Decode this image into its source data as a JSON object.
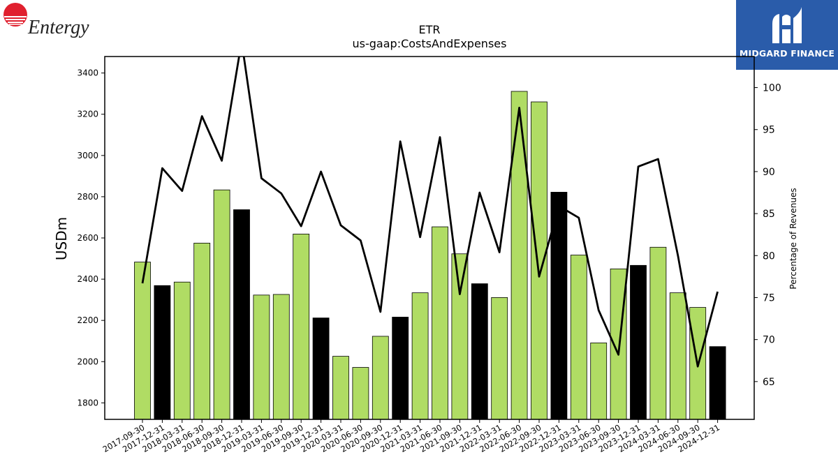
{
  "logos": {
    "left_brand": "Entergy",
    "right_brand": "MIDGARD FINANCE"
  },
  "chart_data": {
    "type": "bar",
    "title": "ETR",
    "subtitle": "us-gaap:CostsAndExpenses",
    "ylabel": "USDm",
    "y2label": "Percentage of Revenues",
    "ylim": [
      1720,
      3480
    ],
    "y2lim": [
      60.5,
      103.7
    ],
    "yticks": [
      1800,
      2000,
      2200,
      2400,
      2600,
      2800,
      3000,
      3200,
      3400
    ],
    "y2ticks": [
      65,
      70,
      75,
      80,
      85,
      90,
      95,
      100
    ],
    "grid": false,
    "categories": [
      "2017-09-30",
      "2017-12-31",
      "2018-03-31",
      "2018-06-30",
      "2018-09-30",
      "2018-12-31",
      "2019-03-31",
      "2019-06-30",
      "2019-09-30",
      "2019-12-31",
      "2020-03-31",
      "2020-06-30",
      "2020-09-30",
      "2020-12-31",
      "2021-03-31",
      "2021-06-30",
      "2021-09-30",
      "2021-12-31",
      "2022-03-31",
      "2022-06-30",
      "2022-09-30",
      "2022-12-31",
      "2023-03-31",
      "2023-06-30",
      "2023-09-30",
      "2023-12-31",
      "2024-03-31",
      "2024-06-30",
      "2024-09-30",
      "2024-12-31"
    ],
    "series": [
      {
        "type": "bar",
        "values": [
          2483,
          2369,
          2386,
          2575,
          2833,
          2737,
          2323,
          2326,
          2619,
          2212,
          2026,
          1972,
          2123,
          2216,
          2334,
          2654,
          2523,
          2378,
          2311,
          3311,
          3260,
          2822,
          2517,
          2091,
          2450,
          2467,
          2555,
          2334,
          2263,
          2073
        ]
      },
      {
        "type": "line",
        "axis": "right",
        "values": [
          76.7,
          90.4,
          87.7,
          96.6,
          91.3,
          105.5,
          89.2,
          87.4,
          83.5,
          90.0,
          83.6,
          81.8,
          73.3,
          93.6,
          82.2,
          94.1,
          75.4,
          87.5,
          80.4,
          97.6,
          77.5,
          85.9,
          84.5,
          73.5,
          68.2,
          90.6,
          91.5,
          80.0,
          66.8,
          75.7
        ]
      }
    ],
    "colors": {
      "bar_regular": "#b0dc64",
      "bar_year_end": "#000000",
      "line": "#000000"
    }
  }
}
